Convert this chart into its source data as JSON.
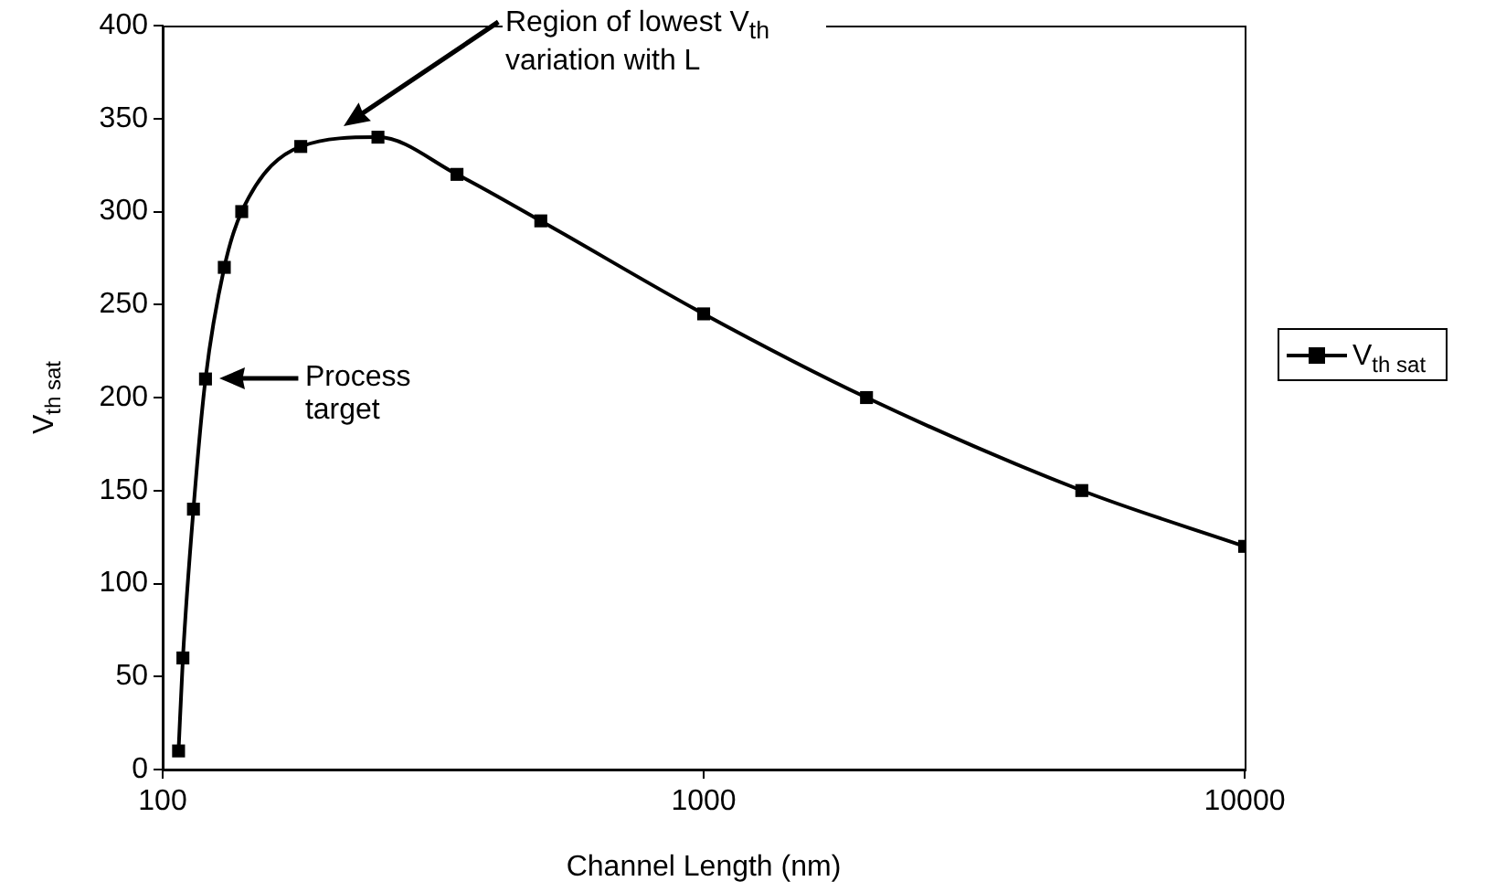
{
  "chart_data": {
    "type": "line",
    "xlabel": "Channel Length (nm)",
    "ylabel": "V$_{th sat}$",
    "log": "x",
    "x": [
      107,
      109,
      114,
      120,
      130,
      140,
      180,
      250,
      350,
      500,
      1000,
      2000,
      5000,
      10000
    ],
    "series": [
      {
        "name": "V$_{th sat}$",
        "color": "#000000",
        "values": [
          10,
          60,
          140,
          210,
          270,
          300,
          335,
          340,
          320,
          295,
          245,
          200,
          150,
          120
        ]
      }
    ],
    "xlim": [
      100,
      10000
    ],
    "xticks": [
      100,
      1000,
      10000
    ],
    "ylim": [
      0,
      400
    ],
    "yticks": [
      0,
      50,
      100,
      150,
      200,
      250,
      300,
      350,
      400
    ],
    "grid": false,
    "legend": "right",
    "marker": "square",
    "line_style": "solid",
    "annotations": [
      "Region of lowest V$_{th}$ variation with L",
      "Process target"
    ]
  }
}
